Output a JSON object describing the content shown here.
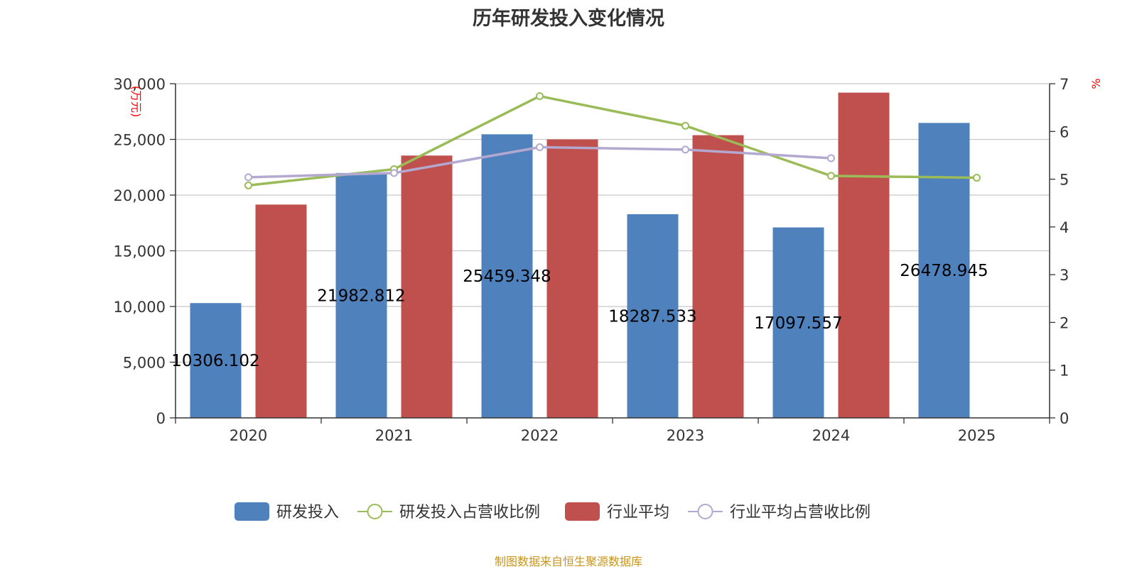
{
  "chart_data": {
    "type": "bar",
    "title": "历年研发投入变化情况",
    "categories": [
      "2020",
      "2021",
      "2022",
      "2023",
      "2024",
      "2025"
    ],
    "y_left": {
      "unit": "(万元)",
      "ylim": [
        0,
        30000
      ],
      "ticks": [
        0,
        5000,
        10000,
        15000,
        20000,
        25000,
        30000
      ],
      "tick_labels": [
        "0",
        "5,000",
        "10,000",
        "15,000",
        "20,000",
        "25,000",
        "30,000"
      ]
    },
    "y_right": {
      "unit": "%",
      "ylim": [
        0,
        7
      ],
      "ticks": [
        0,
        1,
        2,
        3,
        4,
        5,
        6,
        7
      ],
      "tick_labels": [
        "0",
        "1",
        "2",
        "3",
        "4",
        "5",
        "6",
        "7"
      ]
    },
    "series": [
      {
        "name": "研发投入",
        "type": "bar",
        "axis": "left",
        "color": "#4f81bd",
        "values": [
          10306.102,
          21982.812,
          25459.348,
          18287.533,
          17097.557,
          26478.945
        ],
        "labels": [
          "10306.102",
          "21982.812",
          "25459.348",
          "18287.533",
          "17097.557",
          "26478.945"
        ]
      },
      {
        "name": "研发投入占营收比例",
        "type": "line",
        "axis": "right",
        "color": "#9bbb59",
        "values": [
          4.87,
          5.21,
          6.74,
          6.12,
          5.07,
          5.03
        ]
      },
      {
        "name": "行业平均",
        "type": "bar",
        "axis": "left",
        "color": "#c0504d",
        "values": [
          19150,
          23550,
          25000,
          25380,
          29200,
          null
        ]
      },
      {
        "name": "行业平均占营收比例",
        "type": "line",
        "axis": "right",
        "color": "#b3a8d0",
        "values": [
          5.04,
          5.13,
          5.67,
          5.62,
          5.44,
          null
        ]
      }
    ],
    "grid": true,
    "legend_position": "bottom"
  },
  "source_text": "制图数据来自恒生聚源数据库"
}
